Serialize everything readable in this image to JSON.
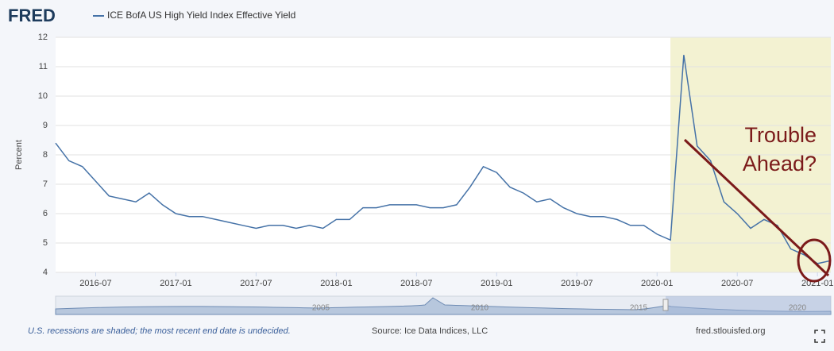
{
  "logo": "FRED",
  "chart_data": {
    "type": "line",
    "y_label": "Percent",
    "x": [
      "2016-04",
      "2016-05",
      "2016-06",
      "2016-07",
      "2016-08",
      "2016-09",
      "2016-10",
      "2016-11",
      "2016-12",
      "2017-01",
      "2017-02",
      "2017-03",
      "2017-04",
      "2017-05",
      "2017-06",
      "2017-07",
      "2017-08",
      "2017-09",
      "2017-10",
      "2017-11",
      "2017-12",
      "2018-01",
      "2018-02",
      "2018-03",
      "2018-04",
      "2018-05",
      "2018-06",
      "2018-07",
      "2018-08",
      "2018-09",
      "2018-10",
      "2018-11",
      "2018-12",
      "2019-01",
      "2019-02",
      "2019-03",
      "2019-04",
      "2019-05",
      "2019-06",
      "2019-07",
      "2019-08",
      "2019-09",
      "2019-10",
      "2019-11",
      "2019-12",
      "2020-01",
      "2020-02",
      "2020-03",
      "2020-04",
      "2020-05",
      "2020-06",
      "2020-07",
      "2020-08",
      "2020-09",
      "2020-10",
      "2020-11",
      "2020-12",
      "2021-01",
      "2021-02"
    ],
    "series": [
      {
        "name": "ICE BofA US High Yield Index Effective Yield",
        "color": "#4572a7",
        "values": [
          8.4,
          7.8,
          7.6,
          7.1,
          6.6,
          6.5,
          6.4,
          6.7,
          6.3,
          6.0,
          5.9,
          5.9,
          5.8,
          5.7,
          5.6,
          5.5,
          5.6,
          5.6,
          5.5,
          5.6,
          5.5,
          5.8,
          5.8,
          6.2,
          6.2,
          6.3,
          6.3,
          6.3,
          6.2,
          6.2,
          6.3,
          6.9,
          7.6,
          7.4,
          6.9,
          6.7,
          6.4,
          6.5,
          6.2,
          6.0,
          5.9,
          5.9,
          5.8,
          5.6,
          5.6,
          5.3,
          5.1,
          11.4,
          8.3,
          7.8,
          6.4,
          6.0,
          5.5,
          5.8,
          5.6,
          4.8,
          4.6,
          4.3,
          4.4
        ]
      }
    ],
    "xlim": [
      "2016-04",
      "2021-02"
    ],
    "xticks": [
      "2016-07",
      "2017-01",
      "2017-07",
      "2018-01",
      "2018-07",
      "2019-01",
      "2019-07",
      "2020-01",
      "2020-07",
      "2021-01"
    ],
    "ylim": [
      4,
      12
    ],
    "yticks": [
      4,
      5,
      6,
      7,
      8,
      9,
      10,
      11,
      12
    ],
    "grid": true,
    "recession": [
      "2020-02",
      "2021-02"
    ],
    "recession_color": "#f3f2d2",
    "annotation": [
      "Trouble",
      "Ahead?"
    ],
    "annotation_color": "#7b1a1a",
    "navigator_labels": [
      "2005",
      "2010",
      "2015",
      "2020"
    ],
    "footnote": "U.S. recessions are shaded; the most recent end date is undecided.",
    "source": "Source: Ice Data Indices, LLC",
    "site": "fred.stlouisfed.org"
  }
}
